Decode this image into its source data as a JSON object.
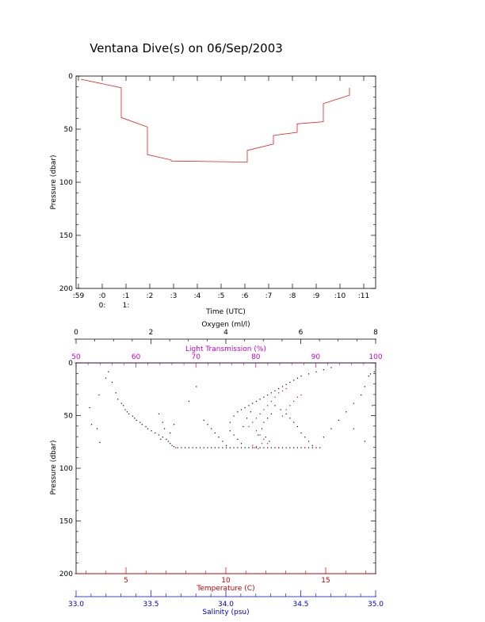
{
  "title": "Ventana Dive(s) on 06/Sep/2003",
  "colors": {
    "axis": "#000000",
    "profile": "#e02020",
    "temperature": "#cc0000",
    "salinity": "#0000cc",
    "light_transmission": "#cc00cc",
    "oxygen": "#000000"
  },
  "chart_data": [
    {
      "type": "line",
      "ylabel": "Pressure (dbar)",
      "xlabel": "Time (UTC)",
      "ylim": [
        200,
        0
      ],
      "y_ticks": [
        "0",
        "50",
        "100",
        "150",
        "200"
      ],
      "y_tick_values": [
        0,
        50,
        100,
        150,
        200
      ],
      "x_tick_labels": [
        ":59",
        ":0",
        ":1",
        ":2",
        ":3",
        ":4",
        ":5",
        ":6",
        ":7",
        ":8",
        ":9",
        ":10",
        ":11"
      ],
      "x_tick_values": [
        -1,
        0,
        1,
        2,
        3,
        4,
        5,
        6,
        7,
        8,
        9,
        10,
        11
      ],
      "x_hour_labels": [
        {
          "x": 0,
          "label": "0:"
        },
        {
          "x": 1,
          "label": "1:"
        }
      ],
      "xlim": [
        -1.1,
        11.5
      ],
      "series": [
        {
          "x": [
            -0.9,
            0.8,
            0.8,
            1.9,
            1.9,
            2.9,
            2.9,
            6.1,
            6.1,
            7.2,
            7.2,
            8.2,
            8.2,
            9.3,
            9.3,
            10.4,
            10.4
          ],
          "y": [
            3,
            11,
            39,
            48,
            74,
            79,
            80,
            81,
            70,
            64,
            56,
            53,
            45,
            43,
            26,
            18,
            11
          ]
        }
      ]
    },
    {
      "type": "scatter",
      "ylabel": "Pressure (dbar)",
      "ylim": [
        200,
        0
      ],
      "y_ticks": [
        "0",
        "50",
        "100",
        "150",
        "200"
      ],
      "y_tick_values": [
        0,
        50,
        100,
        150,
        200
      ],
      "axes": {
        "oxygen": {
          "label": "Oxygen (ml/l)",
          "range": [
            0,
            8
          ],
          "ticks": [
            "0",
            "2",
            "4",
            "6",
            "8"
          ],
          "tick_values": [
            0,
            2,
            4,
            6,
            8
          ]
        },
        "light_transmission": {
          "label": "Light Transmission (%)",
          "range": [
            50,
            100
          ],
          "ticks": [
            "50",
            "60",
            "70",
            "80",
            "90",
            "100"
          ],
          "tick_values": [
            50,
            60,
            70,
            80,
            90,
            100
          ]
        },
        "temperature": {
          "label": "Temperature (C)",
          "range": [
            2.5,
            17.5
          ],
          "ticks": [
            "5",
            "10",
            "15"
          ],
          "tick_values": [
            5,
            10,
            15
          ]
        },
        "salinity": {
          "label": "Salinity (psu)",
          "range": [
            33.0,
            35.0
          ],
          "ticks": [
            "33.0",
            "33.5",
            "34.0",
            "34.5",
            "35.0"
          ],
          "tick_values": [
            33.0,
            33.5,
            34.0,
            34.5,
            35.0
          ]
        }
      },
      "points_black": [
        [
          0.35,
          42
        ],
        [
          0.4,
          58
        ],
        [
          0.55,
          62
        ],
        [
          0.6,
          30
        ],
        [
          0.62,
          75
        ],
        [
          0.78,
          14
        ],
        [
          0.85,
          8
        ],
        [
          0.95,
          18
        ],
        [
          1.05,
          28
        ],
        [
          1.1,
          34
        ],
        [
          1.2,
          38
        ],
        [
          1.25,
          40
        ],
        [
          1.3,
          44
        ],
        [
          1.35,
          46
        ],
        [
          1.4,
          48
        ],
        [
          1.5,
          50
        ],
        [
          1.55,
          52
        ],
        [
          1.6,
          54
        ],
        [
          1.7,
          56
        ],
        [
          1.75,
          58
        ],
        [
          1.85,
          60
        ],
        [
          1.9,
          62
        ],
        [
          2.0,
          64
        ],
        [
          2.1,
          66
        ],
        [
          2.2,
          68
        ],
        [
          2.3,
          70
        ],
        [
          2.4,
          72
        ],
        [
          2.45,
          74
        ],
        [
          2.5,
          76
        ],
        [
          2.55,
          78
        ],
        [
          2.6,
          79
        ],
        [
          2.7,
          80
        ],
        [
          2.8,
          80
        ],
        [
          2.9,
          80
        ],
        [
          3.0,
          80
        ],
        [
          3.1,
          80
        ],
        [
          3.2,
          80
        ],
        [
          3.3,
          80
        ],
        [
          3.4,
          80
        ],
        [
          3.5,
          80
        ],
        [
          3.6,
          80
        ],
        [
          3.7,
          80
        ],
        [
          3.8,
          80
        ],
        [
          3.9,
          80
        ],
        [
          4.0,
          80
        ],
        [
          4.1,
          80
        ],
        [
          4.2,
          80
        ],
        [
          4.3,
          80
        ],
        [
          4.4,
          80
        ],
        [
          4.5,
          80
        ],
        [
          4.6,
          80
        ],
        [
          4.7,
          80
        ],
        [
          4.8,
          80
        ],
        [
          4.9,
          80
        ],
        [
          5.0,
          80
        ],
        [
          5.1,
          80
        ],
        [
          5.2,
          80
        ],
        [
          5.3,
          80
        ],
        [
          5.4,
          80
        ],
        [
          5.5,
          80
        ],
        [
          5.6,
          80
        ],
        [
          5.7,
          80
        ],
        [
          5.8,
          80
        ],
        [
          5.9,
          80
        ],
        [
          6.0,
          80
        ],
        [
          6.1,
          80
        ],
        [
          6.2,
          80
        ],
        [
          6.3,
          80
        ],
        [
          6.4,
          80
        ],
        [
          6.5,
          80
        ],
        [
          2.2,
          48
        ],
        [
          2.3,
          56
        ],
        [
          2.35,
          62
        ],
        [
          2.25,
          72
        ],
        [
          2.5,
          66
        ],
        [
          2.6,
          58
        ],
        [
          3.0,
          36
        ],
        [
          3.2,
          22
        ],
        [
          3.4,
          54
        ],
        [
          3.5,
          58
        ],
        [
          3.6,
          62
        ],
        [
          3.7,
          66
        ],
        [
          3.8,
          70
        ],
        [
          3.9,
          74
        ],
        [
          4.0,
          78
        ],
        [
          4.1,
          56
        ],
        [
          4.2,
          50
        ],
        [
          4.3,
          46
        ],
        [
          4.4,
          44
        ],
        [
          4.5,
          42
        ],
        [
          4.6,
          40
        ],
        [
          4.7,
          38
        ],
        [
          4.8,
          36
        ],
        [
          4.9,
          34
        ],
        [
          5.0,
          32
        ],
        [
          5.1,
          30
        ],
        [
          5.2,
          28
        ],
        [
          5.3,
          26
        ],
        [
          5.4,
          24
        ],
        [
          5.5,
          22
        ],
        [
          5.6,
          20
        ],
        [
          5.7,
          18
        ],
        [
          5.8,
          16
        ],
        [
          5.9,
          14
        ],
        [
          6.0,
          12
        ],
        [
          6.2,
          10
        ],
        [
          6.4,
          8
        ],
        [
          6.6,
          6
        ],
        [
          6.8,
          4
        ],
        [
          4.1,
          64
        ],
        [
          4.2,
          68
        ],
        [
          4.3,
          72
        ],
        [
          4.4,
          76
        ],
        [
          4.45,
          60
        ],
        [
          4.55,
          52
        ],
        [
          4.65,
          46
        ],
        [
          5.3,
          40
        ],
        [
          5.45,
          44
        ],
        [
          5.6,
          48
        ],
        [
          5.7,
          52
        ],
        [
          5.8,
          56
        ],
        [
          5.9,
          60
        ],
        [
          6.0,
          66
        ],
        [
          6.1,
          70
        ],
        [
          6.2,
          74
        ],
        [
          6.3,
          78
        ],
        [
          6.6,
          70
        ],
        [
          6.8,
          62
        ],
        [
          7.0,
          54
        ],
        [
          7.2,
          46
        ],
        [
          7.4,
          38
        ],
        [
          7.6,
          30
        ],
        [
          7.7,
          22
        ],
        [
          7.8,
          12
        ],
        [
          7.85,
          10
        ],
        [
          7.4,
          62
        ],
        [
          7.7,
          74
        ],
        [
          7.9,
          40
        ],
        [
          7.95,
          8
        ],
        [
          5.0,
          56
        ],
        [
          5.1,
          52
        ],
        [
          5.2,
          48
        ],
        [
          4.95,
          62
        ],
        [
          5.05,
          70
        ],
        [
          5.15,
          74
        ],
        [
          4.85,
          68
        ]
      ],
      "points_red": [
        [
          2.65,
          80
        ],
        [
          2.8,
          80
        ],
        [
          3.1,
          80
        ],
        [
          3.5,
          80
        ],
        [
          3.9,
          80
        ],
        [
          4.3,
          80
        ],
        [
          4.7,
          80
        ],
        [
          4.75,
          80
        ],
        [
          4.8,
          79
        ],
        [
          4.85,
          81
        ],
        [
          4.9,
          80
        ],
        [
          5.1,
          80
        ],
        [
          5.4,
          80
        ],
        [
          5.8,
          80
        ],
        [
          6.1,
          80
        ],
        [
          6.4,
          80
        ],
        [
          4.6,
          60
        ],
        [
          4.7,
          56
        ],
        [
          4.8,
          52
        ],
        [
          4.9,
          48
        ],
        [
          5.0,
          44
        ],
        [
          5.1,
          40
        ],
        [
          5.2,
          36
        ],
        [
          5.3,
          32
        ],
        [
          5.4,
          28
        ],
        [
          5.5,
          26
        ],
        [
          5.6,
          24
        ],
        [
          4.8,
          64
        ],
        [
          4.9,
          68
        ],
        [
          5.0,
          72
        ],
        [
          5.1,
          76
        ],
        [
          5.5,
          50
        ],
        [
          5.6,
          44
        ],
        [
          5.7,
          40
        ],
        [
          5.8,
          36
        ],
        [
          5.9,
          32
        ],
        [
          6.0,
          30
        ],
        [
          4.7,
          78
        ],
        [
          4.95,
          76
        ]
      ]
    }
  ]
}
